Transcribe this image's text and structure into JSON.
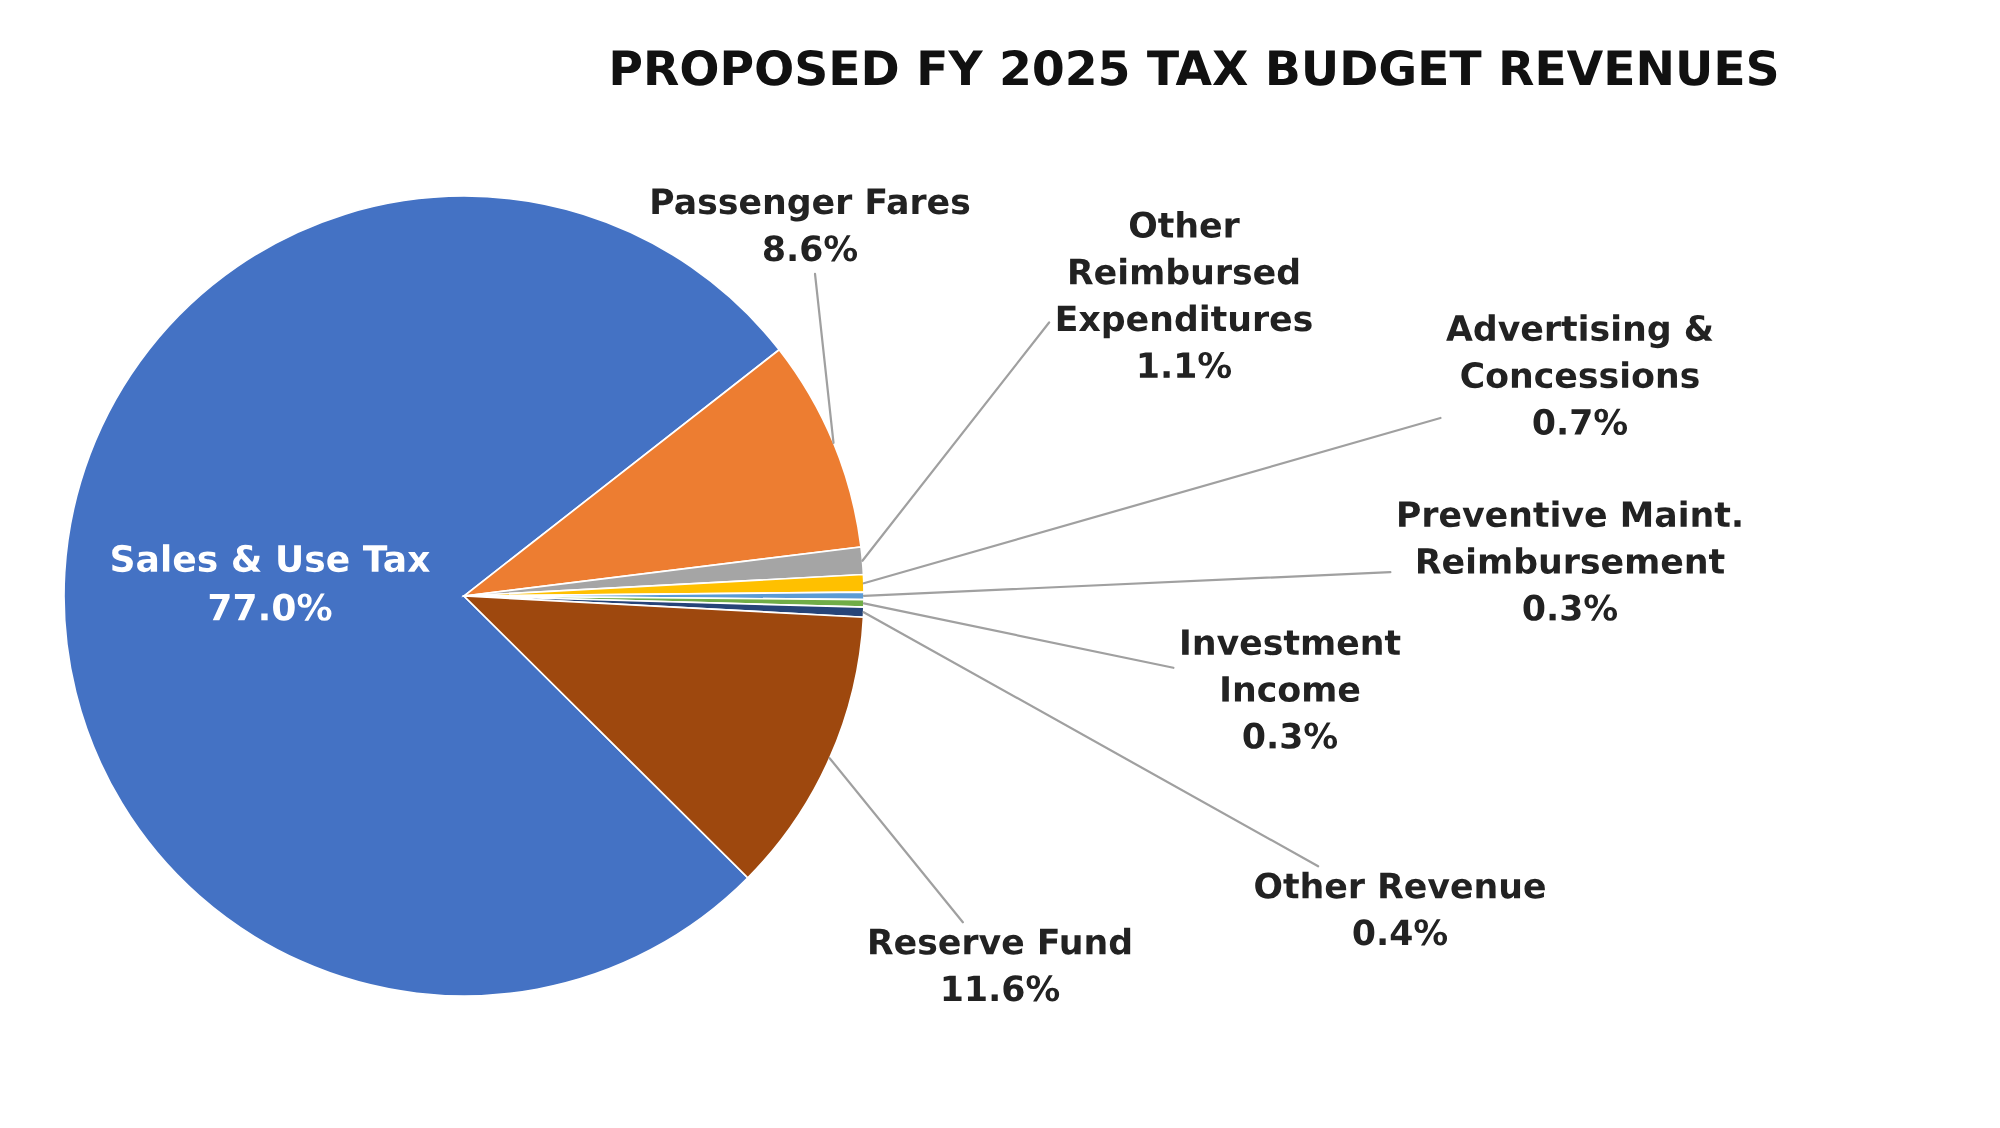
{
  "chart_data": {
    "type": "pie",
    "title": "PROPOSED FY 2025 TAX BUDGET REVENUES",
    "categories": [
      "Sales & Use Tax",
      "Passenger Fares",
      "Other\nReimbursed\nExpenditures",
      "Advertising &\nConcessions",
      "Preventive Maint.\nReimbursement",
      "Investment\nIncome",
      "Other Revenue",
      "Reserve Fund"
    ],
    "values": [
      77.0,
      8.6,
      1.1,
      0.7,
      0.3,
      0.3,
      0.4,
      11.6
    ],
    "value_labels": [
      "77.0%",
      "8.6%",
      "1.1%",
      "0.7%",
      "0.3%",
      "0.3%",
      "0.4%",
      "11.6%"
    ],
    "colors": [
      "#4472c4",
      "#ed7d31",
      "#a5a5a5",
      "#ffc000",
      "#5b9bd5",
      "#70ad47",
      "#264478",
      "#9e480e"
    ],
    "legend": false
  }
}
